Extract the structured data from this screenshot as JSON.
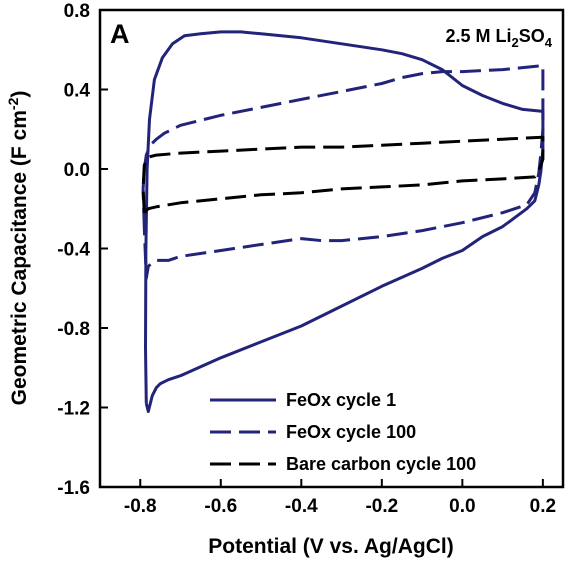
{
  "panel_label": "A",
  "condition": {
    "prefix": "2.5 M Li",
    "sub1": "2",
    "mid": "SO",
    "sub2": "4"
  },
  "ylabel": {
    "main": "Geometric Capacitance (F cm",
    "sup": "-2",
    "end": ")"
  },
  "chart_data": {
    "type": "line",
    "xlabel": "Potential (V vs. Ag/AgCl)",
    "xlim": [
      -0.9,
      0.25
    ],
    "ylim": [
      -1.6,
      0.8
    ],
    "xticks": [
      "-0.8",
      "-0.6",
      "-0.4",
      "-0.2",
      "0.0",
      "0.2"
    ],
    "yticks": [
      "0.8",
      "0.4",
      "0.0",
      "-0.4",
      "-0.8",
      "-1.2",
      "-1.6"
    ],
    "grid": false,
    "legend_position": "bottom-right",
    "series": [
      {
        "name": "FeOx cycle 1",
        "color": "#22247a",
        "dash": "solid",
        "x": [
          -0.785,
          -0.787,
          -0.786,
          -0.783,
          -0.777,
          -0.765,
          -0.745,
          -0.72,
          -0.69,
          -0.65,
          -0.6,
          -0.55,
          -0.5,
          -0.4,
          -0.3,
          -0.2,
          -0.15,
          -0.1,
          -0.05,
          0.0,
          0.05,
          0.1,
          0.15,
          0.2,
          0.2,
          0.195,
          0.19,
          0.18,
          0.16,
          0.12,
          0.1,
          0.05,
          0.0,
          -0.05,
          -0.1,
          -0.2,
          -0.3,
          -0.4,
          -0.5,
          -0.6,
          -0.7,
          -0.73,
          -0.75,
          -0.76,
          -0.77,
          -0.775,
          -0.78,
          -0.785
        ],
        "y": [
          -1.18,
          -0.9,
          -0.4,
          0.0,
          0.25,
          0.45,
          0.56,
          0.63,
          0.67,
          0.68,
          0.69,
          0.69,
          0.68,
          0.66,
          0.63,
          0.6,
          0.58,
          0.55,
          0.5,
          0.42,
          0.37,
          0.33,
          0.3,
          0.29,
          0.1,
          -0.01,
          -0.08,
          -0.16,
          -0.2,
          -0.26,
          -0.29,
          -0.34,
          -0.41,
          -0.45,
          -0.5,
          -0.59,
          -0.69,
          -0.79,
          -0.87,
          -0.95,
          -1.04,
          -1.06,
          -1.08,
          -1.1,
          -1.14,
          -1.18,
          -1.22,
          -1.18
        ]
      },
      {
        "name": "FeOx cycle 100",
        "color": "#22247a",
        "dash": "dashed",
        "x": [
          -0.79,
          -0.793,
          -0.79,
          -0.785,
          -0.775,
          -0.76,
          -0.74,
          -0.7,
          -0.6,
          -0.5,
          -0.4,
          -0.3,
          -0.2,
          -0.15,
          -0.1,
          -0.05,
          0.0,
          0.1,
          0.2,
          0.2,
          0.195,
          0.19,
          0.18,
          0.16,
          0.1,
          0.0,
          -0.1,
          -0.2,
          -0.3,
          -0.35,
          -0.4,
          -0.5,
          -0.6,
          -0.7,
          -0.73,
          -0.75,
          -0.76,
          -0.77,
          -0.78,
          -0.785,
          -0.79
        ],
        "y": [
          -0.3,
          -0.1,
          0.0,
          0.07,
          0.12,
          0.15,
          0.18,
          0.22,
          0.27,
          0.31,
          0.35,
          0.39,
          0.43,
          0.46,
          0.48,
          0.49,
          0.49,
          0.5,
          0.52,
          0.2,
          0.08,
          -0.02,
          -0.12,
          -0.18,
          -0.22,
          -0.27,
          -0.31,
          -0.34,
          -0.36,
          -0.36,
          -0.35,
          -0.38,
          -0.41,
          -0.44,
          -0.46,
          -0.46,
          -0.46,
          -0.47,
          -0.49,
          -0.55,
          -0.3
        ]
      },
      {
        "name": "Bare carbon cycle 100",
        "color": "#000000",
        "dash": "dashed",
        "x": [
          -0.79,
          -0.793,
          -0.79,
          -0.78,
          -0.76,
          -0.7,
          -0.6,
          -0.5,
          -0.4,
          -0.3,
          -0.2,
          -0.1,
          0.0,
          0.1,
          0.2,
          0.2,
          0.19,
          0.18,
          0.1,
          0.0,
          -0.1,
          -0.2,
          -0.3,
          -0.4,
          -0.5,
          -0.6,
          -0.7,
          -0.76,
          -0.78,
          -0.79
        ],
        "y": [
          -0.22,
          -0.1,
          0.02,
          0.06,
          0.07,
          0.08,
          0.09,
          0.1,
          0.11,
          0.11,
          0.12,
          0.13,
          0.14,
          0.15,
          0.16,
          0.05,
          -0.01,
          -0.04,
          -0.05,
          -0.06,
          -0.08,
          -0.09,
          -0.1,
          -0.12,
          -0.13,
          -0.15,
          -0.17,
          -0.19,
          -0.2,
          -0.22
        ]
      }
    ]
  }
}
